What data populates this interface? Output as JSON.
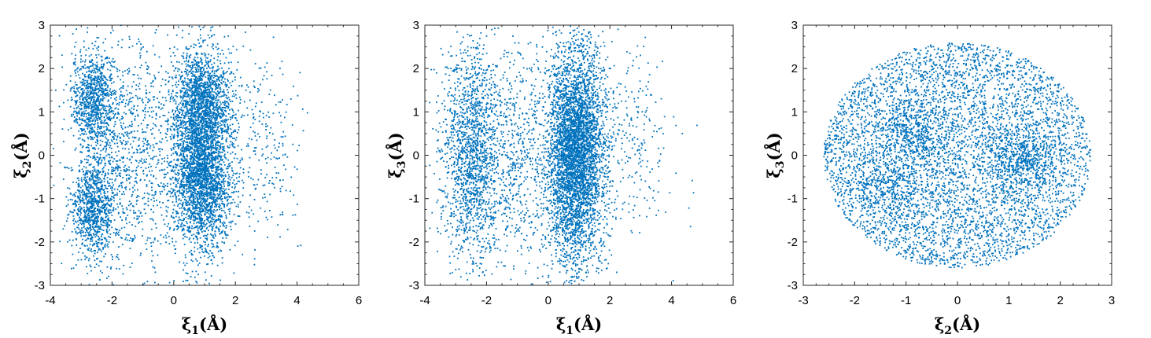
{
  "chart_data": [
    {
      "type": "scatter",
      "color": "#0072BD",
      "xlabel": {
        "sym": "ξ",
        "sub": "1",
        "unit": "(Å)"
      },
      "ylabel": {
        "sym": "ξ",
        "sub": "2",
        "unit": "(Å)"
      },
      "xlim": [
        -4,
        6
      ],
      "ylim": [
        -3,
        3
      ],
      "xticks": [
        -4,
        -2,
        0,
        2,
        4,
        6
      ],
      "yticks": [
        -3,
        -2,
        -1,
        0,
        1,
        2,
        3
      ],
      "grid": false,
      "clusters": [
        {
          "cx": -2.6,
          "cy": 1.3,
          "sx": 0.35,
          "sy": 0.55,
          "n": 900
        },
        {
          "cx": -2.6,
          "cy": -1.2,
          "sx": 0.35,
          "sy": 0.55,
          "n": 900
        },
        {
          "cx": -1.5,
          "cy": 0.0,
          "sx": 0.9,
          "sy": 1.3,
          "n": 1000
        },
        {
          "cx": 0.9,
          "cy": 1.2,
          "sx": 0.45,
          "sy": 0.6,
          "n": 1400
        },
        {
          "cx": 0.9,
          "cy": -0.6,
          "sx": 0.45,
          "sy": 0.7,
          "n": 1700
        },
        {
          "cx": 0.9,
          "cy": 0.0,
          "sx": 0.6,
          "sy": 1.3,
          "n": 1200
        },
        {
          "cx": 3.0,
          "cy": 0.0,
          "sx": 0.6,
          "sy": 1.2,
          "n": 220
        }
      ]
    },
    {
      "type": "scatter",
      "color": "#0072BD",
      "xlabel": {
        "sym": "ξ",
        "sub": "1",
        "unit": "(Å)"
      },
      "ylabel": {
        "sym": "ξ",
        "sub": "3",
        "unit": "(Å)"
      },
      "xlim": [
        -4,
        6
      ],
      "ylim": [
        -3,
        3
      ],
      "xticks": [
        -4,
        -2,
        0,
        2,
        4,
        6
      ],
      "yticks": [
        -3,
        -2,
        -1,
        0,
        1,
        2,
        3
      ],
      "grid": false,
      "clusters": [
        {
          "cx": -2.5,
          "cy": 0.0,
          "sx": 0.5,
          "sy": 1.3,
          "n": 1600
        },
        {
          "cx": -1.0,
          "cy": 0.0,
          "sx": 0.7,
          "sy": 1.3,
          "n": 700
        },
        {
          "cx": 0.9,
          "cy": 0.0,
          "sx": 0.45,
          "sy": 1.2,
          "n": 3600
        },
        {
          "cx": 0.9,
          "cy": 0.0,
          "sx": 0.55,
          "sy": 1.5,
          "n": 900
        },
        {
          "cx": 2.9,
          "cy": 0.3,
          "sx": 0.7,
          "sy": 1.1,
          "n": 220
        }
      ]
    },
    {
      "type": "scatter",
      "color": "#0072BD",
      "xlabel": {
        "sym": "ξ",
        "sub": "2",
        "unit": "(Å)"
      },
      "ylabel": {
        "sym": "ξ",
        "sub": "3",
        "unit": "(Å)"
      },
      "xlim": [
        -3,
        3
      ],
      "ylim": [
        -3,
        3
      ],
      "xticks": [
        -3,
        -2,
        -1,
        0,
        1,
        2,
        3
      ],
      "yticks": [
        -3,
        -2,
        -1,
        0,
        1,
        2,
        3
      ],
      "grid": false,
      "disc": {
        "r": 2.6,
        "n": 5000
      },
      "clusters": [
        {
          "cx": 1.2,
          "cy": -0.1,
          "sx": 0.4,
          "sy": 0.4,
          "n": 500
        },
        {
          "cx": -0.9,
          "cy": 0.5,
          "sx": 0.4,
          "sy": 0.4,
          "n": 400
        },
        {
          "cx": -1.3,
          "cy": -0.7,
          "sx": 0.5,
          "sy": 0.4,
          "n": 300
        }
      ]
    }
  ]
}
